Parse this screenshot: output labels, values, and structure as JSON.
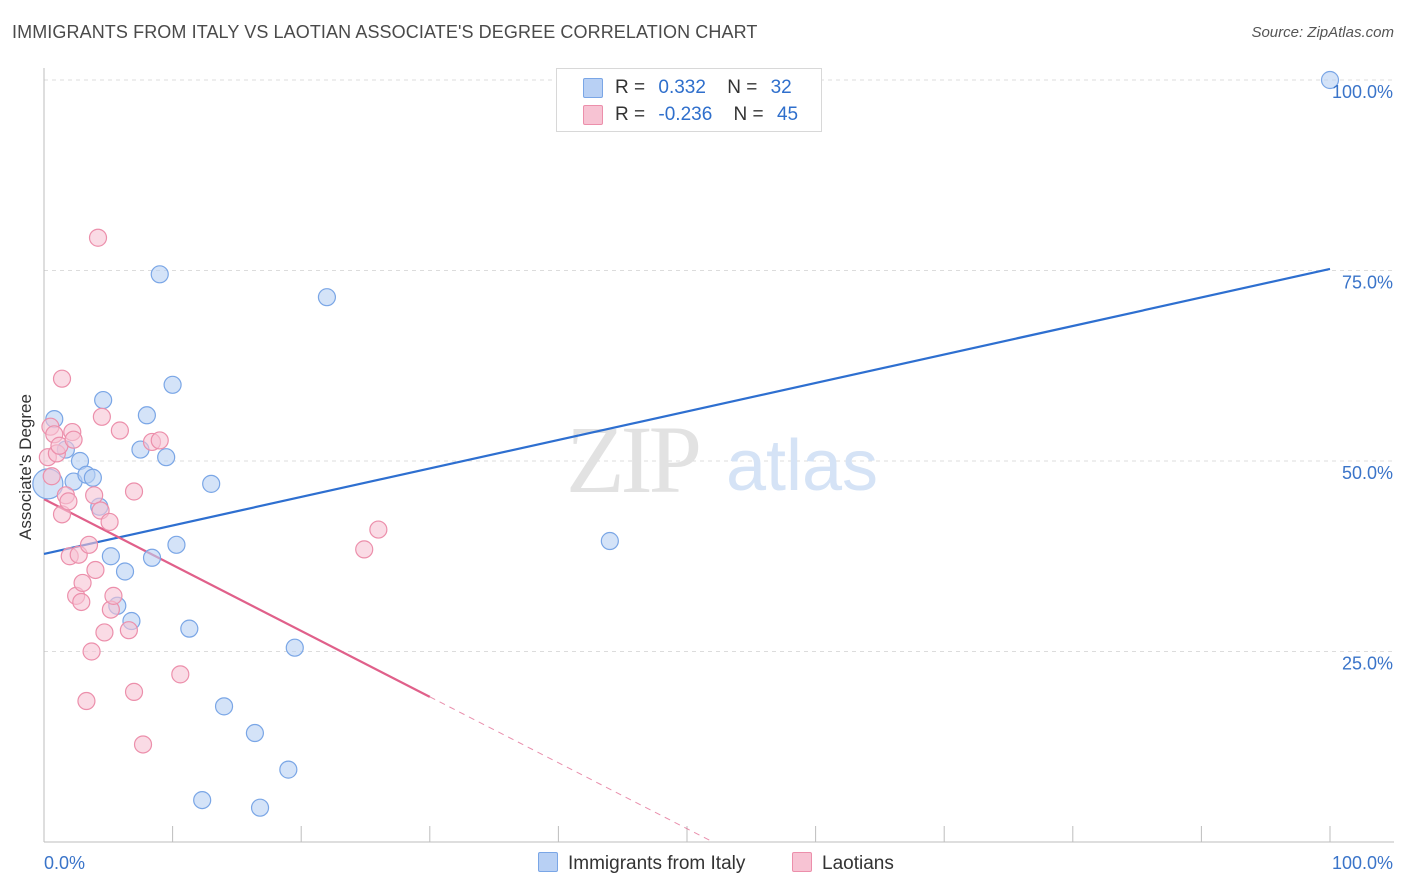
{
  "title": "IMMIGRANTS FROM ITALY VS LAOTIAN ASSOCIATE'S DEGREE CORRELATION CHART",
  "source": "Source: ZipAtlas.com",
  "watermark": {
    "zip": "ZIP",
    "atlas": "atlas"
  },
  "colors": {
    "blue_fill": "#b8d0f4",
    "blue_stroke": "#7aa6e6",
    "blue_line": "#2e6fd0",
    "pink_fill": "#f7c3d3",
    "pink_stroke": "#ec8fab",
    "pink_line": "#e0608a",
    "axis_label": "#3a74c9",
    "grid": "#dcdcdc"
  },
  "legend": {
    "rows": [
      {
        "r_label": "R =",
        "r_value": "0.332",
        "n_label": "N =",
        "n_value": "32",
        "color": "#b8d0f4"
      },
      {
        "r_label": "R =",
        "r_value": "-0.236",
        "n_label": "N =",
        "n_value": "45",
        "color": "#f7c3d3"
      }
    ]
  },
  "bottom_legend": [
    {
      "label": "Immigrants from Italy",
      "color": "#b8d0f4"
    },
    {
      "label": "Laotians",
      "color": "#f7c3d3"
    }
  ],
  "chart_data": {
    "type": "scatter",
    "title": "IMMIGRANTS FROM ITALY VS LAOTIAN ASSOCIATE'S DEGREE CORRELATION CHART",
    "xlabel": "",
    "ylabel": "Associate's Degree",
    "xlim": [
      0,
      100
    ],
    "ylim": [
      0,
      100
    ],
    "x_tick_labels": [
      "0.0%",
      "100.0%"
    ],
    "y_ticks": [
      25,
      50,
      75,
      100
    ],
    "y_tick_labels": [
      "25.0%",
      "50.0%",
      "75.0%",
      "100.0%"
    ],
    "grid": true,
    "series": [
      {
        "name": "Immigrants from Italy",
        "R": 0.332,
        "N": 32,
        "trend": {
          "x": [
            0,
            100
          ],
          "y": [
            37.8,
            75.2
          ],
          "dashed_after": null
        },
        "points": [
          {
            "x": 0.3,
            "y": 47.0,
            "big": true
          },
          {
            "x": 0.8,
            "y": 55.5
          },
          {
            "x": 1.7,
            "y": 51.5
          },
          {
            "x": 2.3,
            "y": 47.3
          },
          {
            "x": 2.8,
            "y": 50.0
          },
          {
            "x": 3.3,
            "y": 48.2
          },
          {
            "x": 3.8,
            "y": 47.8
          },
          {
            "x": 4.3,
            "y": 44.0
          },
          {
            "x": 4.6,
            "y": 58.0
          },
          {
            "x": 5.2,
            "y": 37.5
          },
          {
            "x": 5.7,
            "y": 31.0
          },
          {
            "x": 6.3,
            "y": 35.5
          },
          {
            "x": 6.8,
            "y": 29.0
          },
          {
            "x": 7.5,
            "y": 51.5
          },
          {
            "x": 8.0,
            "y": 56.0
          },
          {
            "x": 8.4,
            "y": 37.3
          },
          {
            "x": 9.0,
            "y": 74.5
          },
          {
            "x": 9.5,
            "y": 50.5
          },
          {
            "x": 10.0,
            "y": 60.0
          },
          {
            "x": 10.3,
            "y": 39.0
          },
          {
            "x": 11.3,
            "y": 28.0
          },
          {
            "x": 12.3,
            "y": 5.5
          },
          {
            "x": 13.0,
            "y": 47.0
          },
          {
            "x": 14.0,
            "y": 17.8
          },
          {
            "x": 16.4,
            "y": 14.3
          },
          {
            "x": 16.8,
            "y": 4.5
          },
          {
            "x": 19.0,
            "y": 9.5
          },
          {
            "x": 19.5,
            "y": 25.5
          },
          {
            "x": 22.0,
            "y": 71.5
          },
          {
            "x": 44.0,
            "y": 39.5
          },
          {
            "x": 100.0,
            "y": 100.0
          }
        ]
      },
      {
        "name": "Laotians",
        "R": -0.236,
        "N": 45,
        "trend": {
          "x": [
            0,
            100
          ],
          "y": [
            45.0,
            -41.5
          ],
          "solid_until_x": 30
        },
        "points": [
          {
            "x": 0.3,
            "y": 50.5
          },
          {
            "x": 0.5,
            "y": 54.5
          },
          {
            "x": 0.6,
            "y": 48.0
          },
          {
            "x": 0.8,
            "y": 53.5
          },
          {
            "x": 1.0,
            "y": 51.0
          },
          {
            "x": 1.2,
            "y": 52.0
          },
          {
            "x": 1.4,
            "y": 60.8
          },
          {
            "x": 1.4,
            "y": 43.0
          },
          {
            "x": 1.7,
            "y": 45.5
          },
          {
            "x": 1.9,
            "y": 44.7
          },
          {
            "x": 2.0,
            "y": 37.5
          },
          {
            "x": 2.2,
            "y": 53.8
          },
          {
            "x": 2.3,
            "y": 52.8
          },
          {
            "x": 2.5,
            "y": 32.3
          },
          {
            "x": 2.7,
            "y": 37.7
          },
          {
            "x": 2.9,
            "y": 31.5
          },
          {
            "x": 3.0,
            "y": 34.0
          },
          {
            "x": 3.3,
            "y": 18.5
          },
          {
            "x": 3.5,
            "y": 39.0
          },
          {
            "x": 3.7,
            "y": 25.0
          },
          {
            "x": 3.9,
            "y": 45.5
          },
          {
            "x": 4.0,
            "y": 35.7
          },
          {
            "x": 4.2,
            "y": 79.3
          },
          {
            "x": 4.4,
            "y": 43.5
          },
          {
            "x": 4.5,
            "y": 55.8
          },
          {
            "x": 4.7,
            "y": 27.5
          },
          {
            "x": 5.1,
            "y": 42.0
          },
          {
            "x": 5.2,
            "y": 30.5
          },
          {
            "x": 5.4,
            "y": 32.3
          },
          {
            "x": 5.9,
            "y": 54.0
          },
          {
            "x": 6.6,
            "y": 27.8
          },
          {
            "x": 7.0,
            "y": 46.0
          },
          {
            "x": 7.0,
            "y": 19.7
          },
          {
            "x": 7.7,
            "y": 12.8
          },
          {
            "x": 8.4,
            "y": 52.5
          },
          {
            "x": 9.0,
            "y": 52.7
          },
          {
            "x": 10.6,
            "y": 22.0
          },
          {
            "x": 24.9,
            "y": 38.4
          },
          {
            "x": 26.0,
            "y": 41.0
          }
        ]
      }
    ]
  }
}
